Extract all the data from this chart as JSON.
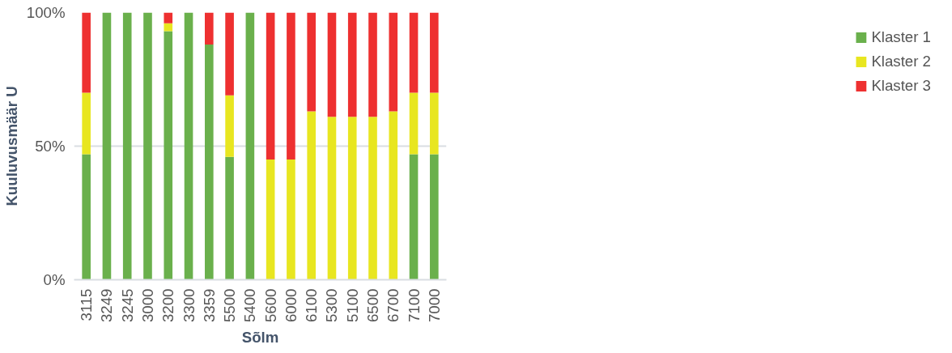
{
  "chart_data": {
    "type": "bar",
    "stacked": true,
    "xlabel": "Sõlm",
    "ylabel": "Kuuluvusmäär U",
    "categories": [
      "3115",
      "3249",
      "3245",
      "3000",
      "3200",
      "3300",
      "3359",
      "5500",
      "5400",
      "5600",
      "6000",
      "6100",
      "5300",
      "5100",
      "6500",
      "6700",
      "7100",
      "7000"
    ],
    "series": [
      {
        "name": "Klaster 1",
        "color": "#6ab04c",
        "values": [
          47,
          100,
          100,
          100,
          93,
          100,
          88,
          46,
          100,
          0,
          0,
          0,
          0,
          0,
          0,
          0,
          47,
          47
        ]
      },
      {
        "name": "Klaster 2",
        "color": "#e8e620",
        "values": [
          23,
          0,
          0,
          0,
          3,
          0,
          0,
          23,
          0,
          45,
          45,
          63,
          61,
          61,
          61,
          63,
          23,
          23
        ]
      },
      {
        "name": "Klaster 3",
        "color": "#ee3030",
        "values": [
          30,
          0,
          0,
          0,
          4,
          0,
          12,
          31,
          0,
          55,
          55,
          37,
          39,
          39,
          39,
          37,
          30,
          30
        ]
      }
    ],
    "ylim": [
      0,
      100
    ],
    "yticks": [
      {
        "value": 0,
        "label": "0%"
      },
      {
        "value": 50,
        "label": "50%"
      },
      {
        "value": 100,
        "label": "100%"
      }
    ],
    "grid": "y",
    "legend": "right"
  }
}
